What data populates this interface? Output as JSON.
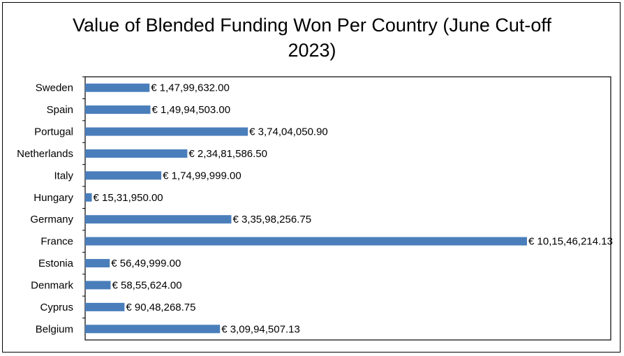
{
  "chart_data": {
    "type": "bar",
    "orientation": "horizontal",
    "title": "Value of Blended Funding Won Per Country (June Cut-off 2023)",
    "xlabel": "",
    "ylabel": "",
    "xlim": [
      0,
      101546214.13
    ],
    "grid": false,
    "legend": "none",
    "bar_color": "#4a7ebb",
    "categories": [
      "Sweden",
      "Spain",
      "Portugal",
      "Netherlands",
      "Italy",
      "Hungary",
      "Germany",
      "France",
      "Estonia",
      "Denmark",
      "Cyprus",
      "Belgium"
    ],
    "values": [
      14799632.0,
      14994503.0,
      37404050.9,
      23481586.5,
      17499999.0,
      1531950.0,
      33598256.75,
      101546214.13,
      5649999.0,
      5855624.0,
      9048268.75,
      30994507.13
    ],
    "data_labels": [
      "€ 1,47,99,632.00",
      "€ 1,49,94,503.00",
      "€ 3,74,04,050.90",
      "€ 2,34,81,586.50",
      "€ 1,74,99,999.00",
      "€ 15,31,950.00",
      "€ 3,35,98,256.75",
      "€ 10,15,46,214.13",
      "€ 56,49,999.00",
      "€ 58,55,624.00",
      "€ 90,48,268.75",
      "€ 3,09,94,507.13"
    ]
  }
}
